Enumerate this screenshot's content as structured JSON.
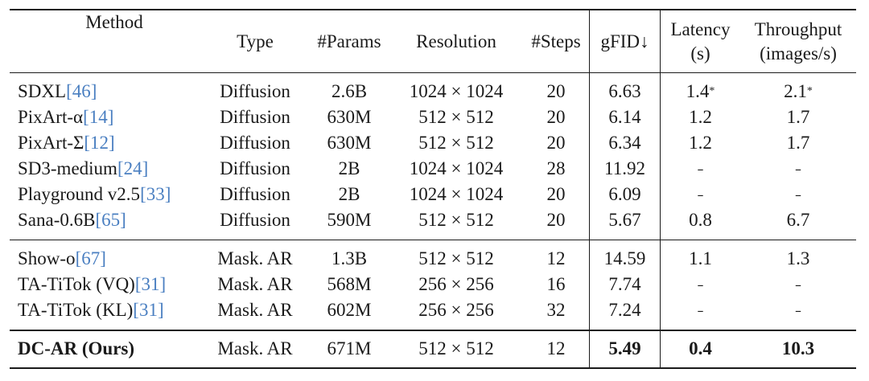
{
  "table": {
    "headers": {
      "method": "Method",
      "type": "Type",
      "params": "#Params",
      "resolution": "Resolution",
      "steps": "#Steps",
      "gfid": "gFID↓",
      "latency_l1": "Latency",
      "latency_l2": "(s)",
      "throughput_l1": "Throughput",
      "throughput_l2": "(images/s)"
    },
    "rows": [
      {
        "method": "SDXL",
        "cite": "[46]",
        "type": "Diffusion",
        "params": "2.6B",
        "resolution": "1024 × 1024",
        "steps": "20",
        "gfid": "6.63",
        "latency": "1.4",
        "latency_mark": "*",
        "throughput": "2.1",
        "throughput_mark": "*"
      },
      {
        "method": "PixArt-α",
        "cite": "[14]",
        "type": "Diffusion",
        "params": "630M",
        "resolution": "512 × 512",
        "steps": "20",
        "gfid": "6.14",
        "latency": "1.2",
        "throughput": "1.7"
      },
      {
        "method": "PixArt-Σ",
        "cite": "[12]",
        "type": "Diffusion",
        "params": "630M",
        "resolution": "512 × 512",
        "steps": "20",
        "gfid": "6.34",
        "latency": "1.2",
        "throughput": "1.7"
      },
      {
        "method": "SD3-medium",
        "cite": "[24]",
        "type": "Diffusion",
        "params": "2B",
        "resolution": "1024 × 1024",
        "steps": "28",
        "gfid": "11.92",
        "latency": "–",
        "throughput": "–"
      },
      {
        "method": "Playground v2.5",
        "cite": "[33]",
        "type": "Diffusion",
        "params": "2B",
        "resolution": "1024 × 1024",
        "steps": "20",
        "gfid": "6.09",
        "latency": "–",
        "throughput": "–"
      },
      {
        "method": "Sana-0.6B",
        "cite": "[65]",
        "type": "Diffusion",
        "params": "590M",
        "resolution": "512 × 512",
        "steps": "20",
        "gfid": "5.67",
        "latency": "0.8",
        "throughput": "6.7"
      },
      {
        "method": "Show-o",
        "cite": "[67]",
        "type": "Mask. AR",
        "params": "1.3B",
        "resolution": "512 × 512",
        "steps": "12",
        "gfid": "14.59",
        "latency": "1.1",
        "throughput": "1.3"
      },
      {
        "method": "TA-TiTok (VQ)",
        "cite": "[31]",
        "type": "Mask. AR",
        "params": "568M",
        "resolution": "256 × 256",
        "steps": "16",
        "gfid": "7.74",
        "latency": "–",
        "throughput": "–"
      },
      {
        "method": "TA-TiTok (KL)",
        "cite": "[31]",
        "type": "Mask. AR",
        "params": "602M",
        "resolution": "256 × 256",
        "steps": "32",
        "gfid": "7.24",
        "latency": "–",
        "throughput": "–"
      },
      {
        "method": "DC-AR (Ours)",
        "cite": "",
        "type": "Mask. AR",
        "params": "671M",
        "resolution": "512 × 512",
        "steps": "12",
        "gfid": "5.49",
        "latency": "0.4",
        "throughput": "10.3",
        "bold": true
      }
    ]
  }
}
